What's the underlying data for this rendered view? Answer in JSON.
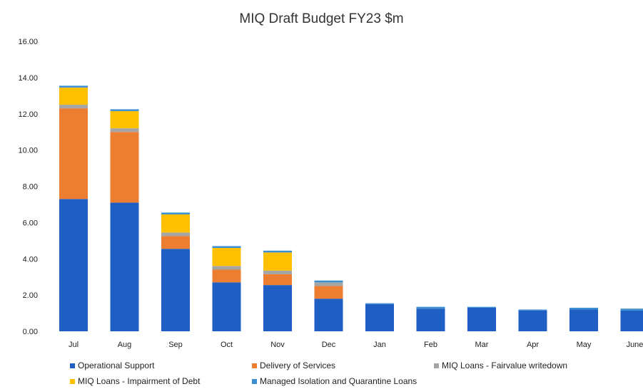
{
  "chart_data": {
    "type": "bar",
    "stacked": true,
    "title": "MIQ Draft Budget FY23 $m",
    "xlabel": "",
    "ylabel": "",
    "ylim": [
      0,
      16
    ],
    "yticks": [
      "0.00",
      "2.00",
      "4.00",
      "6.00",
      "8.00",
      "10.00",
      "12.00",
      "14.00",
      "16.00"
    ],
    "grid": false,
    "legend_position": "bottom",
    "categories": [
      "Jul",
      "Aug",
      "Sep",
      "Oct",
      "Nov",
      "Dec",
      "Jan",
      "Feb",
      "Mar",
      "Apr",
      "May",
      "June"
    ],
    "series": [
      {
        "name": "Operational Support",
        "color": "#1f5fc4",
        "values": [
          7.3,
          7.1,
          4.55,
          2.7,
          2.55,
          1.8,
          1.5,
          1.25,
          1.3,
          1.15,
          1.2,
          1.15
        ]
      },
      {
        "name": "Delivery of Services",
        "color": "#ed7d31",
        "values": [
          5.0,
          3.9,
          0.7,
          0.7,
          0.6,
          0.7,
          0.0,
          0.0,
          0.0,
          0.0,
          0.0,
          0.0
        ]
      },
      {
        "name": "MIQ Loans - Fairvalue writedown",
        "color": "#a5a5a5",
        "values": [
          0.2,
          0.2,
          0.2,
          0.2,
          0.2,
          0.2,
          0.0,
          0.0,
          0.0,
          0.0,
          0.0,
          0.0
        ]
      },
      {
        "name": "MIQ Loans - Impairment of Debt",
        "color": "#ffc000",
        "values": [
          0.95,
          0.95,
          1.0,
          1.0,
          1.0,
          0.0,
          0.0,
          0.0,
          0.0,
          0.0,
          0.0,
          0.0
        ]
      },
      {
        "name": "Managed Isolation and Quarantine Loans",
        "color": "#3b8fd1",
        "values": [
          0.1,
          0.1,
          0.1,
          0.1,
          0.1,
          0.1,
          0.05,
          0.1,
          0.05,
          0.05,
          0.1,
          0.1
        ]
      }
    ]
  }
}
